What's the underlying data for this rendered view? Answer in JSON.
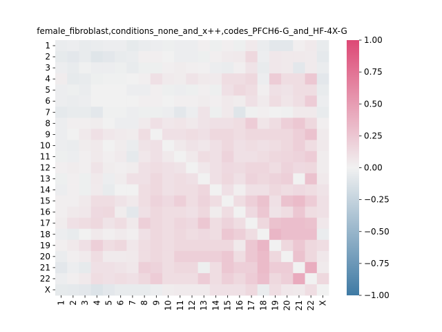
{
  "chart_data": {
    "type": "heatmap",
    "title": "female_fibroblast,conditions_none_and_x++,codes_PFCH6-G_and_HF-4X-G",
    "xlabel": "",
    "ylabel": "",
    "x_labels": [
      "1",
      "2",
      "3",
      "4",
      "5",
      "6",
      "7",
      "8",
      "9",
      "10",
      "11",
      "12",
      "13",
      "14",
      "15",
      "16",
      "17",
      "18",
      "19",
      "20",
      "21",
      "22",
      "X"
    ],
    "y_labels": [
      "1",
      "2",
      "3",
      "4",
      "5",
      "6",
      "7",
      "8",
      "9",
      "10",
      "11",
      "12",
      "13",
      "14",
      "15",
      "16",
      "17",
      "18",
      "19",
      "20",
      "21",
      "22",
      "X"
    ],
    "colorbar": {
      "vmin": -1.0,
      "vmax": 1.0,
      "ticks": [
        1.0,
        0.75,
        0.5,
        0.25,
        0.0,
        -0.25,
        -0.5,
        -0.75,
        -1.0
      ],
      "tick_labels": [
        "1.00",
        "0.75",
        "0.50",
        "0.25",
        "0.00",
        "−0.25",
        "−0.50",
        "−0.75",
        "−1.00"
      ]
    },
    "colors": {
      "negative": "#3f7aa4",
      "center": "#f1f1f1",
      "positive": "#dd4875"
    },
    "values": [
      [
        -0.04,
        -0.03,
        -0.05,
        -0.04,
        -0.03,
        -0.03,
        -0.06,
        -0.04,
        -0.03,
        -0.02,
        -0.03,
        -0.03,
        0.02,
        -0.02,
        0.02,
        -0.02,
        0.05,
        -0.04,
        -0.08,
        -0.08,
        0.02,
        0.05,
        -0.05
      ],
      [
        -0.06,
        -0.08,
        -0.05,
        -0.1,
        -0.08,
        -0.05,
        -0.04,
        0.02,
        0.02,
        0.0,
        -0.03,
        -0.03,
        -0.02,
        0.02,
        0.04,
        0.05,
        0.15,
        -0.03,
        0.06,
        0.05,
        0.05,
        0.04,
        -0.07
      ],
      [
        -0.03,
        -0.05,
        -0.01,
        -0.03,
        -0.03,
        -0.02,
        -0.05,
        -0.02,
        -0.02,
        0.02,
        0.03,
        0.02,
        0.01,
        -0.03,
        -0.04,
        0.02,
        0.08,
        -0.05,
        0.06,
        0.05,
        -0.08,
        0.04,
        -0.04
      ],
      [
        0.03,
        -0.06,
        -0.05,
        -0.02,
        -0.01,
        -0.01,
        0.0,
        0.02,
        0.1,
        0.04,
        0.03,
        0.08,
        0.05,
        0.04,
        0.12,
        0.12,
        0.15,
        -0.03,
        0.22,
        0.12,
        0.12,
        0.25,
        -0.08
      ],
      [
        -0.03,
        -0.02,
        -0.04,
        0.0,
        0.0,
        0.0,
        -0.03,
        -0.03,
        0.02,
        -0.02,
        -0.03,
        -0.02,
        0.02,
        -0.02,
        0.1,
        0.15,
        0.12,
        0.02,
        0.1,
        0.08,
        0.12,
        0.12,
        -0.05
      ],
      [
        -0.03,
        -0.04,
        -0.03,
        0.0,
        0.0,
        0.0,
        0.0,
        0.02,
        0.02,
        0.0,
        0.02,
        0.02,
        0.03,
        0.02,
        0.05,
        0.03,
        0.1,
        0.04,
        0.12,
        0.07,
        0.11,
        0.22,
        -0.03
      ],
      [
        -0.07,
        -0.05,
        -0.05,
        -0.08,
        -0.01,
        -0.01,
        -0.03,
        -0.02,
        -0.02,
        -0.03,
        -0.08,
        -0.03,
        0.08,
        -0.02,
        0.05,
        -0.1,
        -0.01,
        0.02,
        0.0,
        -0.01,
        0.05,
        0.05,
        -0.05
      ],
      [
        -0.03,
        0.02,
        0.02,
        0.03,
        0.0,
        -0.03,
        -0.03,
        0.04,
        0.1,
        0.06,
        0.07,
        0.05,
        0.08,
        0.1,
        0.1,
        0.12,
        0.22,
        0.07,
        0.12,
        0.2,
        0.25,
        0.15,
        0.02
      ],
      [
        -0.03,
        0.0,
        0.05,
        0.1,
        0.06,
        0.04,
        0.03,
        0.12,
        0.0,
        0.1,
        0.1,
        0.12,
        0.1,
        0.15,
        0.15,
        0.12,
        0.15,
        0.15,
        0.15,
        0.15,
        0.2,
        0.28,
        0.04
      ],
      [
        -0.03,
        -0.04,
        0.03,
        0.05,
        0.0,
        0.03,
        -0.04,
        0.08,
        0.1,
        0.0,
        0.05,
        0.08,
        0.06,
        0.1,
        0.15,
        0.1,
        0.12,
        0.1,
        0.12,
        0.15,
        0.2,
        0.12,
        0.05
      ],
      [
        -0.02,
        -0.03,
        0.02,
        0.05,
        0.02,
        0.04,
        -0.07,
        0.06,
        0.1,
        0.05,
        0.0,
        0.05,
        0.12,
        0.1,
        0.18,
        0.1,
        0.1,
        0.12,
        0.15,
        0.16,
        0.18,
        0.22,
        0.03
      ],
      [
        0.02,
        0.03,
        0.02,
        0.08,
        0.03,
        0.02,
        0.03,
        0.1,
        0.12,
        0.1,
        0.08,
        0.0,
        0.06,
        0.1,
        0.14,
        0.13,
        0.16,
        0.16,
        0.12,
        0.18,
        0.14,
        0.15,
        0.03
      ],
      [
        -0.02,
        0.02,
        -0.02,
        0.05,
        -0.03,
        0.03,
        0.1,
        0.1,
        0.15,
        0.1,
        0.12,
        0.1,
        0.0,
        0.1,
        0.15,
        0.1,
        0.18,
        0.15,
        0.18,
        0.2,
        0.0,
        0.28,
        0.05
      ],
      [
        -0.03,
        0.02,
        -0.02,
        0.04,
        -0.05,
        0.0,
        0.0,
        0.12,
        0.15,
        0.1,
        0.12,
        0.12,
        0.16,
        0.0,
        0.1,
        0.02,
        0.1,
        0.1,
        0.15,
        0.12,
        0.14,
        0.12,
        0.08
      ],
      [
        0.02,
        0.02,
        0.05,
        0.12,
        0.12,
        0.08,
        0.05,
        0.12,
        0.18,
        0.14,
        0.2,
        0.12,
        0.18,
        0.12,
        0.0,
        0.12,
        0.2,
        0.28,
        0.1,
        0.28,
        0.32,
        0.22,
        0.1
      ],
      [
        0.02,
        0.05,
        0.06,
        0.14,
        0.15,
        0.03,
        -0.08,
        0.1,
        0.15,
        0.12,
        0.12,
        0.1,
        0.15,
        0.03,
        0.12,
        0.0,
        0.14,
        0.25,
        0.08,
        0.12,
        0.25,
        0.12,
        0.1
      ],
      [
        0.03,
        0.1,
        0.12,
        0.15,
        0.08,
        0.12,
        0.05,
        0.2,
        0.15,
        0.12,
        0.16,
        0.14,
        0.25,
        0.12,
        0.18,
        0.12,
        0.0,
        0.15,
        0.28,
        0.3,
        0.3,
        0.28,
        0.06
      ],
      [
        -0.03,
        -0.05,
        0.0,
        0.05,
        0.02,
        0.04,
        0.02,
        0.1,
        0.15,
        0.12,
        0.15,
        0.12,
        0.14,
        0.12,
        0.25,
        0.2,
        0.12,
        0.0,
        0.35,
        0.3,
        0.3,
        0.3,
        -0.04
      ],
      [
        0.02,
        0.05,
        0.1,
        0.2,
        0.12,
        0.15,
        0.06,
        0.12,
        0.15,
        0.12,
        0.15,
        0.15,
        0.15,
        0.15,
        0.15,
        0.05,
        0.25,
        0.35,
        0.0,
        0.15,
        0.25,
        0.15,
        0.12
      ],
      [
        -0.04,
        0.02,
        0.04,
        0.12,
        0.04,
        0.04,
        0.05,
        0.12,
        0.15,
        0.12,
        0.2,
        0.2,
        0.2,
        0.2,
        0.25,
        0.12,
        0.25,
        0.32,
        0.15,
        0.0,
        0.28,
        0.15,
        0.06
      ],
      [
        -0.08,
        -0.03,
        -0.06,
        0.1,
        0.1,
        0.08,
        0.06,
        0.2,
        0.18,
        0.12,
        0.15,
        0.15,
        -0.02,
        0.12,
        0.25,
        0.2,
        0.2,
        0.32,
        0.22,
        0.22,
        0.0,
        0.4,
        0.04
      ],
      [
        -0.03,
        0.02,
        0.05,
        0.12,
        0.1,
        0.12,
        0.1,
        0.15,
        0.22,
        0.12,
        0.12,
        0.12,
        0.22,
        0.12,
        0.2,
        0.15,
        0.22,
        0.3,
        0.15,
        0.2,
        0.42,
        0.0,
        0.15
      ],
      [
        -0.06,
        -0.07,
        -0.08,
        -0.12,
        -0.08,
        -0.05,
        -0.05,
        -0.05,
        -0.03,
        0.03,
        0.04,
        0.04,
        0.04,
        0.1,
        0.1,
        0.1,
        0.15,
        -0.04,
        0.12,
        0.06,
        0.05,
        0.12,
        0.0
      ]
    ]
  }
}
